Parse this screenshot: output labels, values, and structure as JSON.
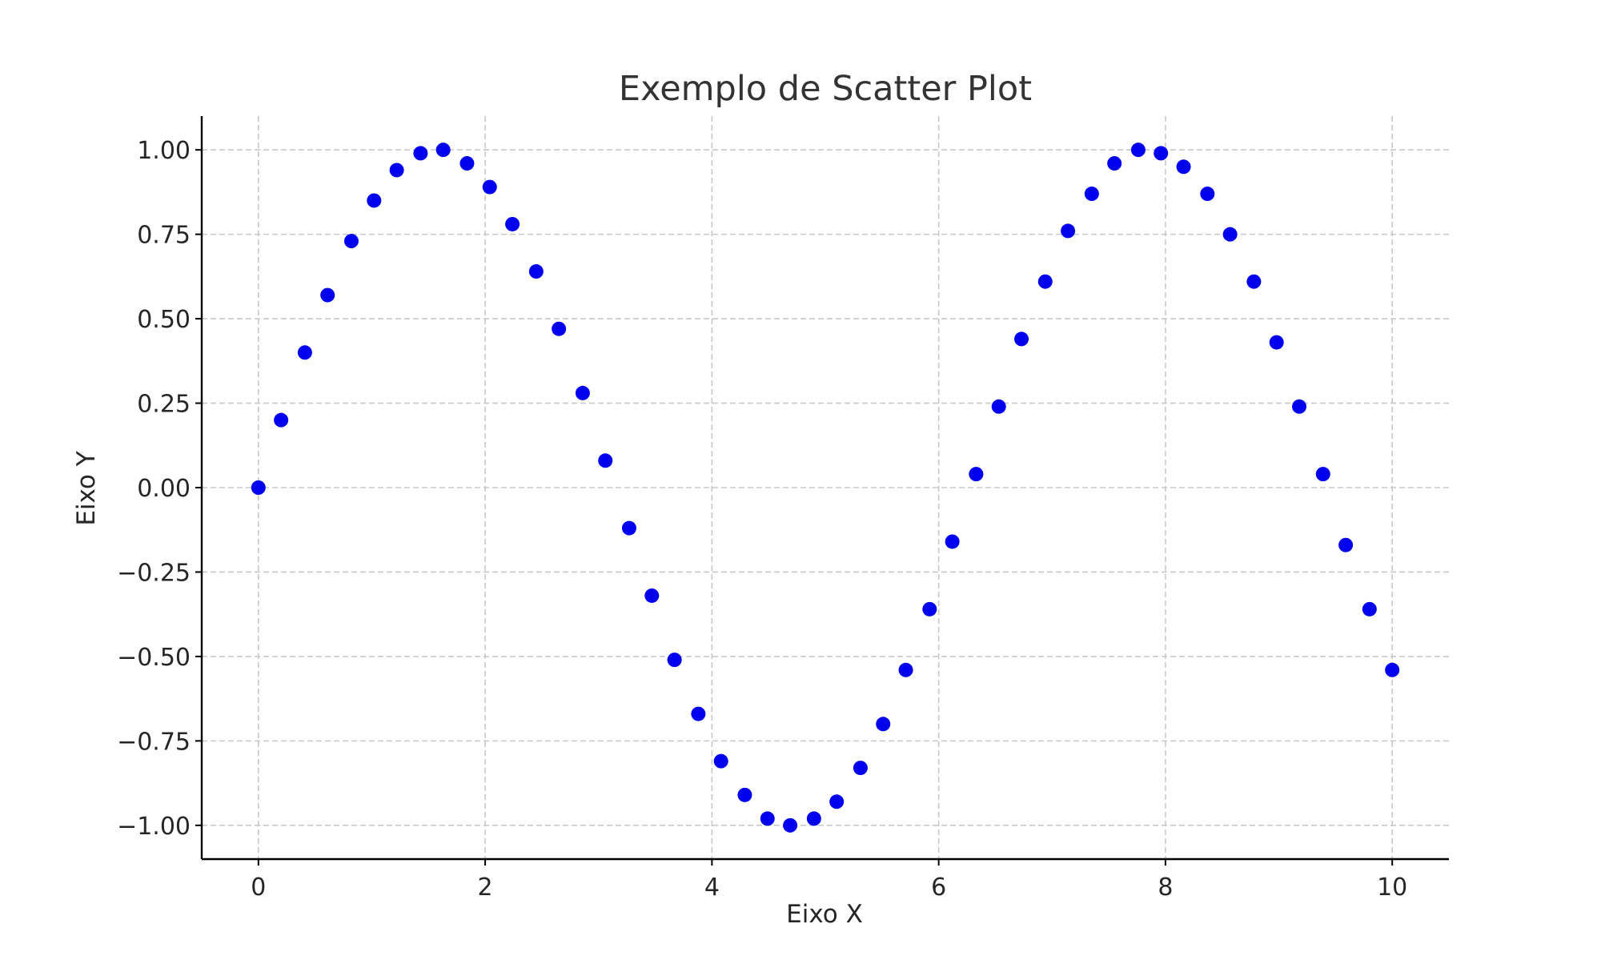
{
  "chart_data": {
    "type": "scatter",
    "title": "Exemplo de Scatter Plot",
    "xlabel": "Eixo X",
    "ylabel": "Eixo Y",
    "xlim": [
      -0.5,
      10.5
    ],
    "ylim": [
      -1.1,
      1.1
    ],
    "grid": true,
    "marker_color": "#0000ee",
    "xticks": [
      0,
      2,
      4,
      6,
      8,
      10
    ],
    "xtick_labels": [
      "0",
      "2",
      "4",
      "6",
      "8",
      "10"
    ],
    "yticks": [
      1.0,
      0.75,
      0.5,
      0.25,
      0.0,
      -0.25,
      -0.5,
      -0.75,
      -1.0
    ],
    "ytick_labels": [
      "1.00",
      "0.75",
      "0.50",
      "0.25",
      "0.00",
      "−0.25",
      "−0.50",
      "−0.75",
      "−1.00"
    ],
    "series": [
      {
        "x": [
          0,
          0.2,
          0.41,
          0.61,
          0.82,
          1.02,
          1.22,
          1.43,
          1.63,
          1.84,
          2.04,
          2.24,
          2.45,
          2.65,
          2.86,
          3.06,
          3.27,
          3.47,
          3.67,
          3.88,
          4.08,
          4.29,
          4.49,
          4.69,
          4.9,
          5.1,
          5.31,
          5.51,
          5.71,
          5.92,
          6.12,
          6.33,
          6.53,
          6.73,
          6.94,
          7.14,
          7.35,
          7.55,
          7.76,
          7.96,
          8.16,
          8.37,
          8.57,
          8.78,
          8.98,
          9.18,
          9.39,
          9.59,
          9.8,
          10
        ],
        "y": [
          0,
          0.2,
          0.4,
          0.57,
          0.73,
          0.85,
          0.94,
          0.99,
          1.0,
          0.96,
          0.89,
          0.78,
          0.64,
          0.47,
          0.28,
          0.08,
          -0.12,
          -0.32,
          -0.51,
          -0.67,
          -0.81,
          -0.91,
          -0.98,
          -1.0,
          -0.98,
          -0.93,
          -0.83,
          -0.7,
          -0.54,
          -0.36,
          -0.16,
          0.04,
          0.24,
          0.44,
          0.61,
          0.76,
          0.87,
          0.96,
          1.0,
          0.99,
          0.95,
          0.87,
          0.75,
          0.61,
          0.43,
          0.24,
          0.04,
          -0.17,
          -0.36,
          -0.54
        ]
      }
    ]
  }
}
